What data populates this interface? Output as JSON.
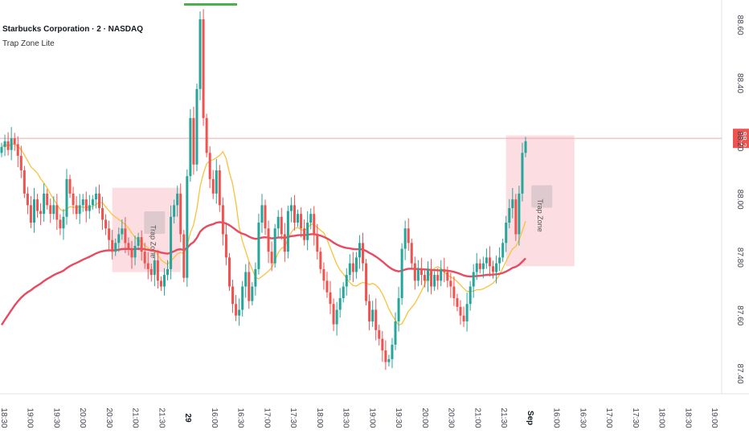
{
  "header": {
    "title": "Starbucks Corporation · 2 · NASDAQ",
    "indicator": "Trap Zone Lite"
  },
  "colors": {
    "up": "#26a69a",
    "down": "#ef5350",
    "fast_ma": "#f9c23c",
    "slow_ma": "#e84a5f",
    "zone_fill": "#f8c8d0",
    "price_line": "#f4a6ae",
    "price_badge": "#ef5350"
  },
  "chart_data": {
    "type": "candlestick",
    "symbol": "Starbucks Corporation · 2 · NASDAQ",
    "ylim": [
      87.3,
      88.7
    ],
    "y_ticks": [
      "88.60",
      "88.40",
      "88.20",
      "88.00",
      "87.80",
      "87.60",
      "87.40"
    ],
    "x_labels": [
      "18:30",
      "19:00",
      "19:30",
      "20:00",
      "20:30",
      "21:00",
      "21:30",
      "29",
      "16:00",
      "16:30",
      "17:00",
      "17:30",
      "18:00",
      "18:30",
      "19:00",
      "19:30",
      "20:00",
      "20:30",
      "21:00",
      "21:30",
      "Sep",
      "16:00",
      "16:30",
      "17:00",
      "17:30",
      "18:00",
      "18:30",
      "19:00"
    ],
    "bold_x_labels": [
      "29",
      "Sep"
    ],
    "last_price": "88.21",
    "closes": [
      88.18,
      88.2,
      88.17,
      88.21,
      88.19,
      88.15,
      88.1,
      88.02,
      87.98,
      87.92,
      88.0,
      87.96,
      87.95,
      88.02,
      87.98,
      87.95,
      87.98,
      87.93,
      87.9,
      87.94,
      88.07,
      88.02,
      87.98,
      87.95,
      87.98,
      88.0,
      87.96,
      87.98,
      88.0,
      88.02,
      87.97,
      87.93,
      87.9,
      87.86,
      87.82,
      87.85,
      87.88,
      87.9,
      87.85,
      87.83,
      87.8,
      87.84,
      87.87,
      87.82,
      87.78,
      87.76,
      87.74,
      87.79,
      87.72,
      87.7,
      87.74,
      87.76,
      87.94,
      87.98,
      88.02,
      87.88,
      87.73,
      88.08,
      88.28,
      88.12,
      88.38,
      88.62,
      88.28,
      88.16,
      88.07,
      88.02,
      88.1,
      87.98,
      87.88,
      87.8,
      87.7,
      87.64,
      87.6,
      87.62,
      87.7,
      87.75,
      87.65,
      87.7,
      87.76,
      87.92,
      87.98,
      87.9,
      87.82,
      87.78,
      87.9,
      87.94,
      87.88,
      87.82,
      87.96,
      87.98,
      87.92,
      87.95,
      87.9,
      87.86,
      87.92,
      87.95,
      87.88,
      87.82,
      87.76,
      87.72,
      87.68,
      87.64,
      87.57,
      87.62,
      87.66,
      87.7,
      87.74,
      87.78,
      87.75,
      87.8,
      87.85,
      87.78,
      87.65,
      87.58,
      87.62,
      87.55,
      87.52,
      87.48,
      87.44,
      87.45,
      87.5,
      87.58,
      87.66,
      87.83,
      87.9,
      87.85,
      87.78,
      87.72,
      87.76,
      87.74,
      87.72,
      87.76,
      87.7,
      87.74,
      87.72,
      87.76,
      87.75,
      87.72,
      87.7,
      87.66,
      87.63,
      87.6,
      87.58,
      87.64,
      87.7,
      87.75,
      87.78,
      87.76,
      87.78,
      87.8,
      87.77,
      87.75,
      87.78,
      87.8,
      87.85,
      87.92,
      87.97,
      88.0,
      87.88,
      88.02,
      88.16,
      88.2
    ]
  },
  "overlays": {
    "price_line": 88.21,
    "trap_zones": [
      {
        "label": "Trap Zone",
        "x_start": 34,
        "x_end": 55,
        "y_low": 87.75,
        "y_high": 88.04,
        "label_x": 47,
        "label_y": 87.92
      },
      {
        "label": "Trap Zone",
        "x_start": 155,
        "x_end": 176,
        "y_low": 87.77,
        "y_high": 88.22,
        "label_x": 166,
        "label_y": 88.01
      }
    ]
  }
}
